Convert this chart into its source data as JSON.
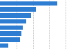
{
  "values": [
    35,
    22,
    19,
    16,
    14,
    13,
    12,
    5
  ],
  "bar_color": "#2d7dd2",
  "background_color": "#ffffff",
  "grid_color": "#bbbbbb",
  "figsize": [
    1.0,
    0.71
  ],
  "dpi": 100,
  "bar_height": 0.72,
  "xlim_max": 42
}
